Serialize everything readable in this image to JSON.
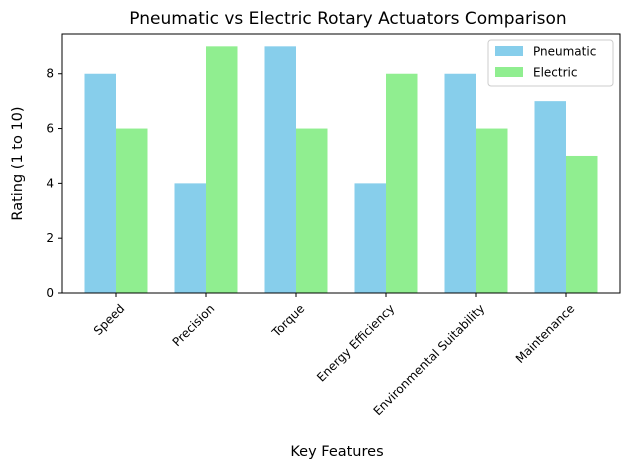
{
  "chart_data": {
    "type": "bar",
    "title": "Pneumatic vs Electric Rotary Actuators Comparison",
    "xlabel": "Key Features",
    "ylabel": "Rating (1 to 10)",
    "categories": [
      "Speed",
      "Precision",
      "Torque",
      "Energy Efficiency",
      "Environmental Suitability",
      "Maintenance"
    ],
    "series": [
      {
        "name": "Pneumatic",
        "color": "#87ceeb",
        "values": [
          8,
          4,
          9,
          4,
          8,
          7
        ]
      },
      {
        "name": "Electric",
        "color": "#90ee90",
        "values": [
          6,
          9,
          6,
          8,
          6,
          5
        ]
      }
    ],
    "ylim": [
      0,
      9.45
    ],
    "yticks": [
      0,
      2,
      4,
      6,
      8
    ],
    "legend_position": "top-right",
    "grid": false
  }
}
